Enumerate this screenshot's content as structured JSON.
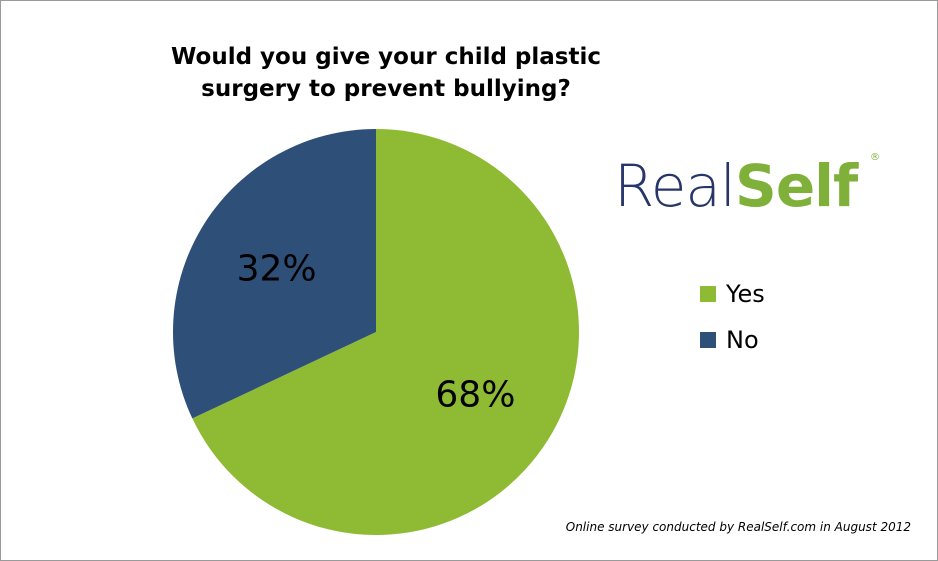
{
  "chart_data": {
    "type": "pie",
    "title": "Would you give your child plastic surgery to prevent bullying?",
    "categories": [
      "Yes",
      "No"
    ],
    "values": [
      68,
      32
    ],
    "data_labels": [
      "68%",
      "32%"
    ],
    "start_angle_deg": 0,
    "direction": "clockwise",
    "legend": {
      "placement": "right",
      "entries": [
        "Yes",
        "No"
      ]
    },
    "colors": [
      "#8ebb33",
      "#2e4f78"
    ]
  },
  "logo": {
    "text_part_1": "Real",
    "text_part_2": "Self",
    "mark": "®",
    "color_part_1": "#27356b",
    "color_part_2": "#7fb13a"
  },
  "footer": {
    "source_note": "Online survey conducted by RealSelf.com in August 2012"
  }
}
